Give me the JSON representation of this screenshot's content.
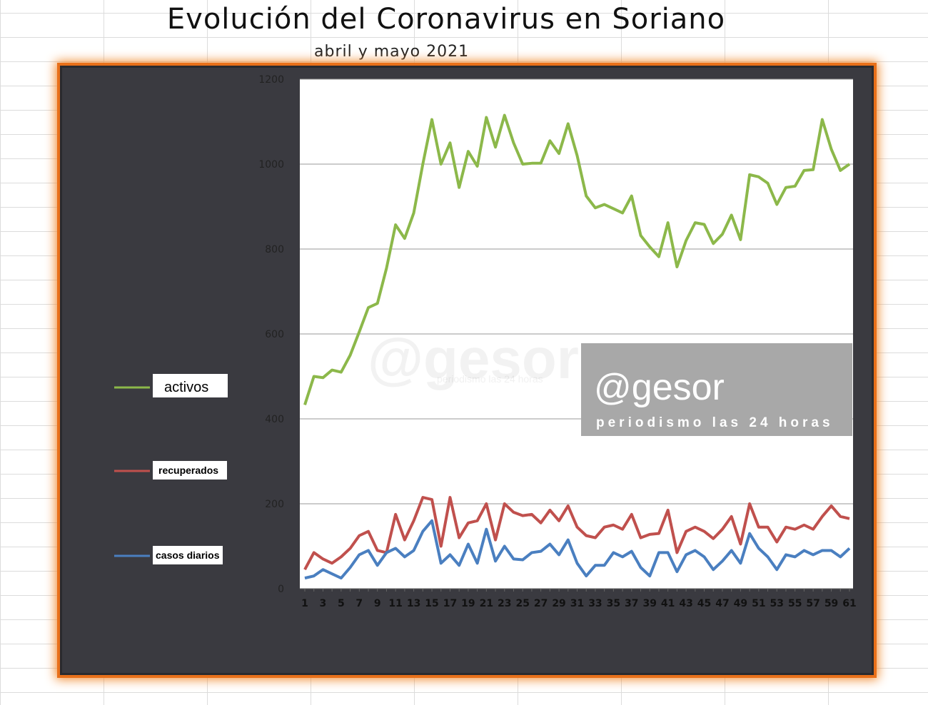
{
  "chart_data": {
    "type": "line",
    "title": "Evolución del Coronavirus en Soriano",
    "subtitle": "abril y mayo 2021",
    "xlabel": "",
    "ylabel": "",
    "x": [
      1,
      2,
      3,
      4,
      5,
      6,
      7,
      8,
      9,
      10,
      11,
      12,
      13,
      14,
      15,
      16,
      17,
      18,
      19,
      20,
      21,
      22,
      23,
      24,
      25,
      26,
      27,
      28,
      29,
      30,
      31,
      32,
      33,
      34,
      35,
      36,
      37,
      38,
      39,
      40,
      41,
      42,
      43,
      44,
      45,
      46,
      47,
      48,
      49,
      50,
      51,
      52,
      53,
      54,
      55,
      56,
      57,
      58,
      59,
      60,
      61
    ],
    "x_tick_labels": [
      "1",
      "3",
      "5",
      "7",
      "9",
      "11",
      "13",
      "15",
      "17",
      "19",
      "21",
      "23",
      "25",
      "27",
      "29",
      "31",
      "33",
      "35",
      "37",
      "39",
      "41",
      "43",
      "45",
      "47",
      "49",
      "51",
      "53",
      "55",
      "57",
      "59",
      "61"
    ],
    "ylim": [
      0,
      1200
    ],
    "y_ticks": [
      0,
      200,
      400,
      600,
      800,
      1000,
      1200
    ],
    "grid": "horizontal",
    "legend_placement": "left",
    "series": [
      {
        "name": "activos",
        "color": "#8cb84a",
        "values": [
          433,
          500,
          497,
          515,
          510,
          550,
          605,
          662,
          672,
          755,
          857,
          825,
          885,
          1000,
          1105,
          1000,
          1050,
          945,
          1030,
          995,
          1110,
          1040,
          1115,
          1050,
          1000,
          1002,
          1002,
          1055,
          1025,
          1095,
          1020,
          925,
          897,
          905,
          895,
          885,
          925,
          832,
          805,
          782,
          862,
          758,
          820,
          862,
          858,
          813,
          835,
          880,
          822,
          975,
          970,
          955,
          905,
          945,
          948,
          985,
          987,
          1105,
          1035,
          985,
          1000
        ]
      },
      {
        "name": "recuperados",
        "color": "#c0504d",
        "values": [
          45,
          85,
          70,
          60,
          75,
          95,
          125,
          135,
          90,
          85,
          175,
          115,
          160,
          215,
          210,
          100,
          215,
          120,
          155,
          160,
          200,
          115,
          200,
          180,
          172,
          175,
          155,
          185,
          160,
          195,
          145,
          125,
          120,
          145,
          150,
          140,
          175,
          120,
          128,
          130,
          185,
          85,
          135,
          145,
          135,
          118,
          140,
          170,
          105,
          200,
          145,
          145,
          110,
          145,
          140,
          150,
          140,
          170,
          195,
          170,
          165
        ]
      },
      {
        "name": "casos diarios",
        "color": "#4a7fc0",
        "values": [
          25,
          30,
          45,
          35,
          25,
          50,
          80,
          90,
          55,
          85,
          95,
          75,
          90,
          135,
          160,
          60,
          80,
          55,
          105,
          60,
          140,
          65,
          100,
          70,
          68,
          85,
          88,
          105,
          80,
          115,
          60,
          30,
          55,
          55,
          85,
          75,
          88,
          50,
          30,
          85,
          85,
          40,
          80,
          90,
          75,
          45,
          65,
          90,
          60,
          130,
          95,
          75,
          45,
          80,
          75,
          90,
          80,
          90,
          90,
          75,
          95
        ]
      }
    ]
  },
  "watermark": {
    "brand": "@gesor",
    "tagline": "periodismo las 24 horas"
  }
}
